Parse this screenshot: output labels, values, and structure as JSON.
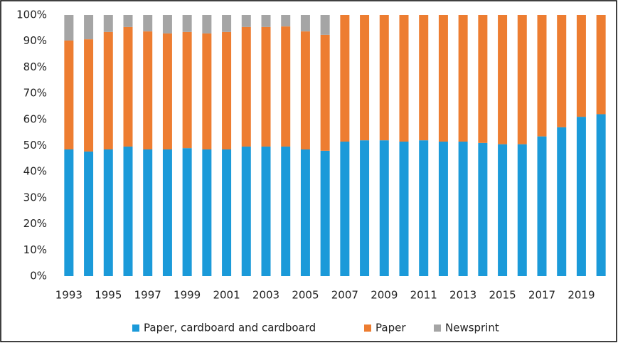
{
  "chart_data": {
    "type": "stacked_bar",
    "categories": [
      "1993",
      null,
      "1995",
      null,
      "1997",
      null,
      "1999",
      null,
      "2001",
      null,
      "2003",
      null,
      "2005",
      null,
      "2007",
      null,
      "2009",
      null,
      "2011",
      null,
      "2013",
      null,
      "2015",
      null,
      "2017",
      null,
      "2019",
      null
    ],
    "series": [
      {
        "name": "Paper, cardboard and cardboard",
        "color": "#1b9ad9",
        "values": [
          48.5,
          47.7,
          48.5,
          49.6,
          48.5,
          48.5,
          49,
          48.5,
          48.5,
          49.6,
          49.6,
          49.6,
          48.5,
          48,
          51.5,
          52,
          52,
          51.5,
          52,
          51.5,
          51.5,
          51,
          50.5,
          50.5,
          53.5,
          57,
          61,
          62
        ]
      },
      {
        "name": "Paper",
        "color": "#ed7d31",
        "values": [
          41.7,
          43,
          45,
          45.8,
          45.2,
          44.4,
          44.5,
          44.4,
          45,
          45.8,
          45.8,
          46,
          45.2,
          44.4,
          48.5,
          48,
          48,
          48.5,
          48,
          48.5,
          48.5,
          49,
          49.5,
          49.5,
          46.5,
          43,
          39,
          38
        ]
      },
      {
        "name": "Newsprint",
        "color": "#a5a5a5",
        "values": [
          9.8,
          9.3,
          6.5,
          4.6,
          6.3,
          7.1,
          6.5,
          7.1,
          6.5,
          4.6,
          4.6,
          4.4,
          6.3,
          7.6,
          0,
          0,
          0,
          0,
          0,
          0,
          0,
          0,
          0,
          0,
          0,
          0,
          0,
          0
        ]
      }
    ],
    "ylim": [
      0,
      100
    ],
    "yticks": [
      {
        "value": 0,
        "label": "0%"
      },
      {
        "value": 10,
        "label": "10%"
      },
      {
        "value": 20,
        "label": "20%"
      },
      {
        "value": 30,
        "label": "30%"
      },
      {
        "value": 40,
        "label": "40%"
      },
      {
        "value": 50,
        "label": "50%"
      },
      {
        "value": 60,
        "label": "60%"
      },
      {
        "value": 70,
        "label": "70%"
      },
      {
        "value": 80,
        "label": "80%"
      },
      {
        "value": 90,
        "label": "90%"
      },
      {
        "value": 100,
        "label": "100%"
      }
    ],
    "grid": false,
    "legend": "bottom"
  }
}
